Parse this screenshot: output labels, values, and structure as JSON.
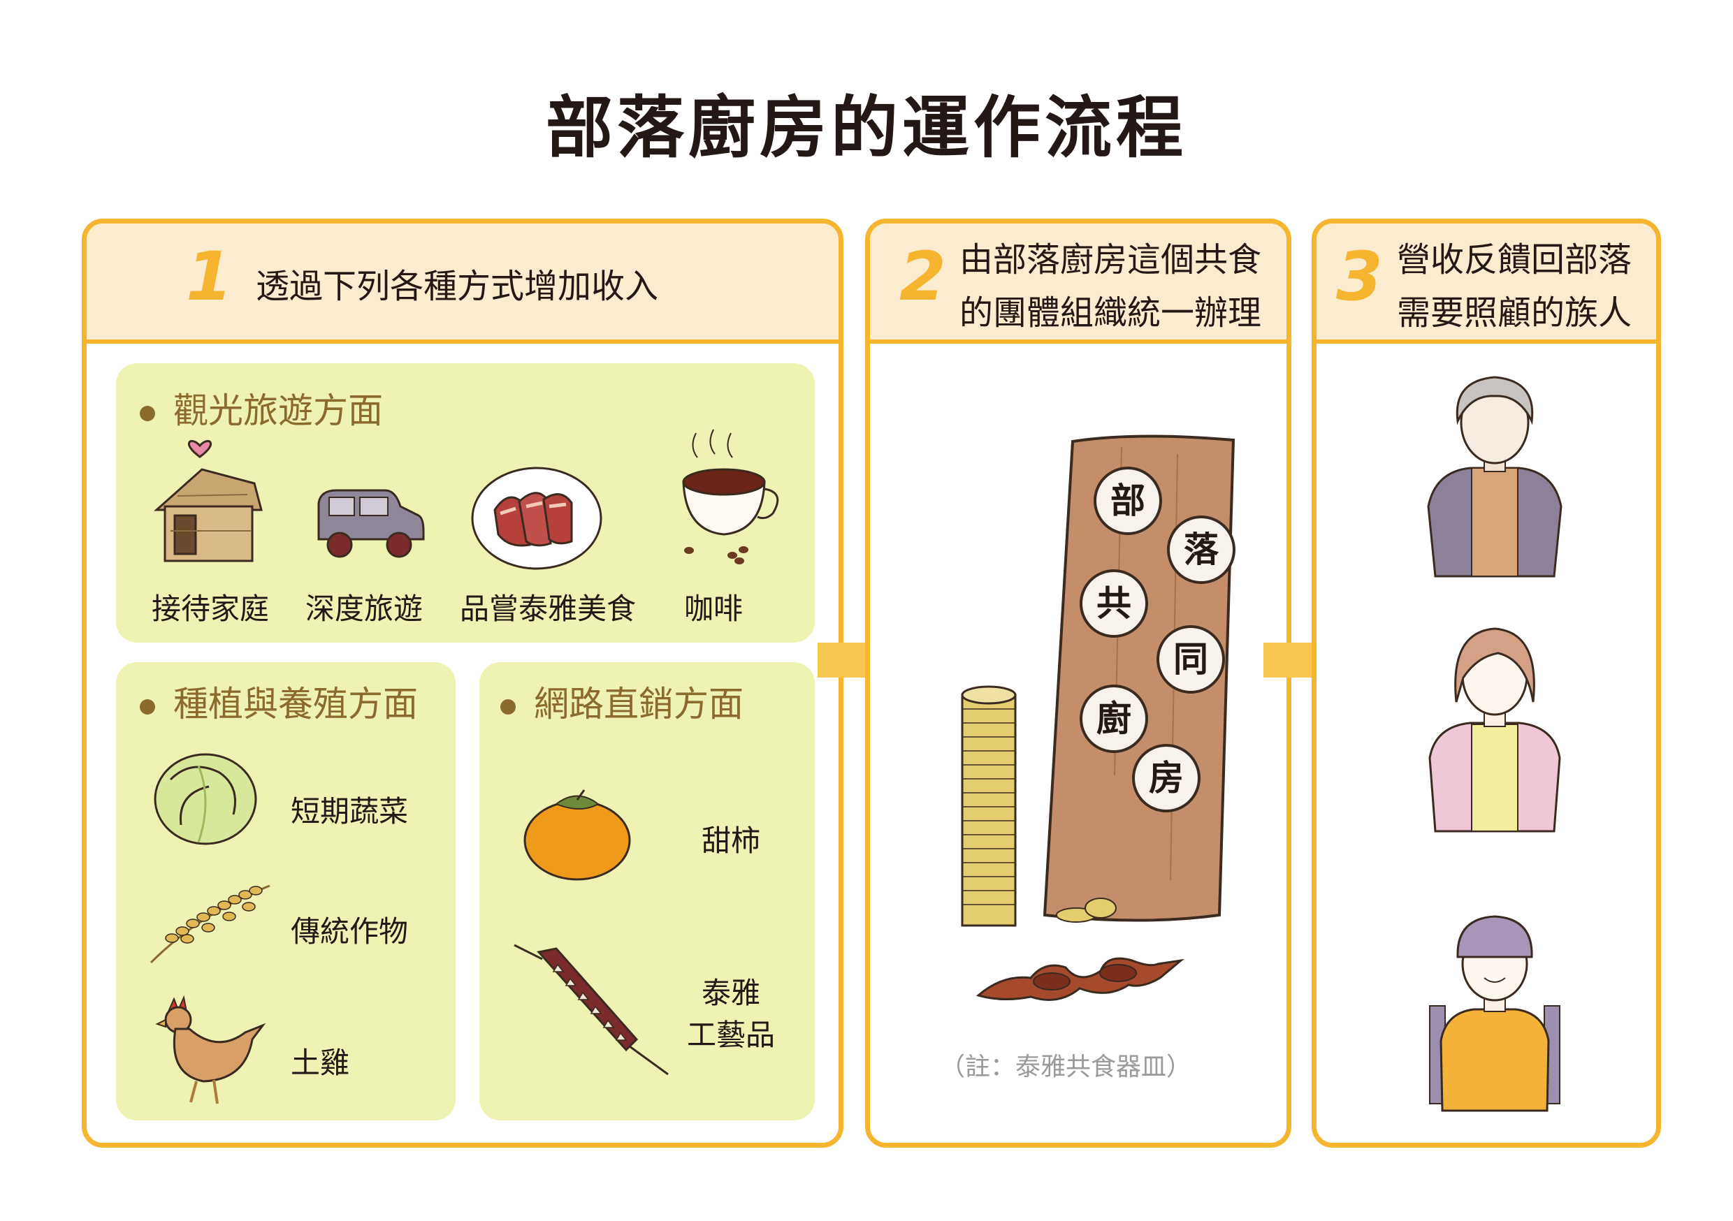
{
  "title": "部落廚房的運作流程",
  "step1": {
    "number": "1",
    "heading": "透過下列各種方式增加收入",
    "tourism": {
      "title": "觀光旅遊方面",
      "items": [
        "接待家庭",
        "深度旅遊",
        "品嘗泰雅美食",
        "咖啡"
      ]
    },
    "farming": {
      "title": "種植與養殖方面",
      "items": [
        "短期蔬菜",
        "傳統作物",
        "土雞"
      ]
    },
    "online": {
      "title": "網路直銷方面",
      "items": [
        "甜柿",
        "泰雅",
        "工藝品"
      ]
    }
  },
  "step2": {
    "number": "2",
    "heading_line1": "由部落廚房這個共食",
    "heading_line2": "的團體組織統一辦理",
    "plates": [
      "部",
      "落",
      "共",
      "同",
      "廚",
      "房"
    ],
    "note": "（註：泰雅共食器皿）"
  },
  "step3": {
    "number": "3",
    "heading_line1": "營收反饋回部落",
    "heading_line2": "需要照顧的族人"
  },
  "colors": {
    "accent": "#f5b52e",
    "header_bg": "#fbecd0",
    "box_bg": "#eef2b2",
    "section_text": "#8b6a2e"
  }
}
